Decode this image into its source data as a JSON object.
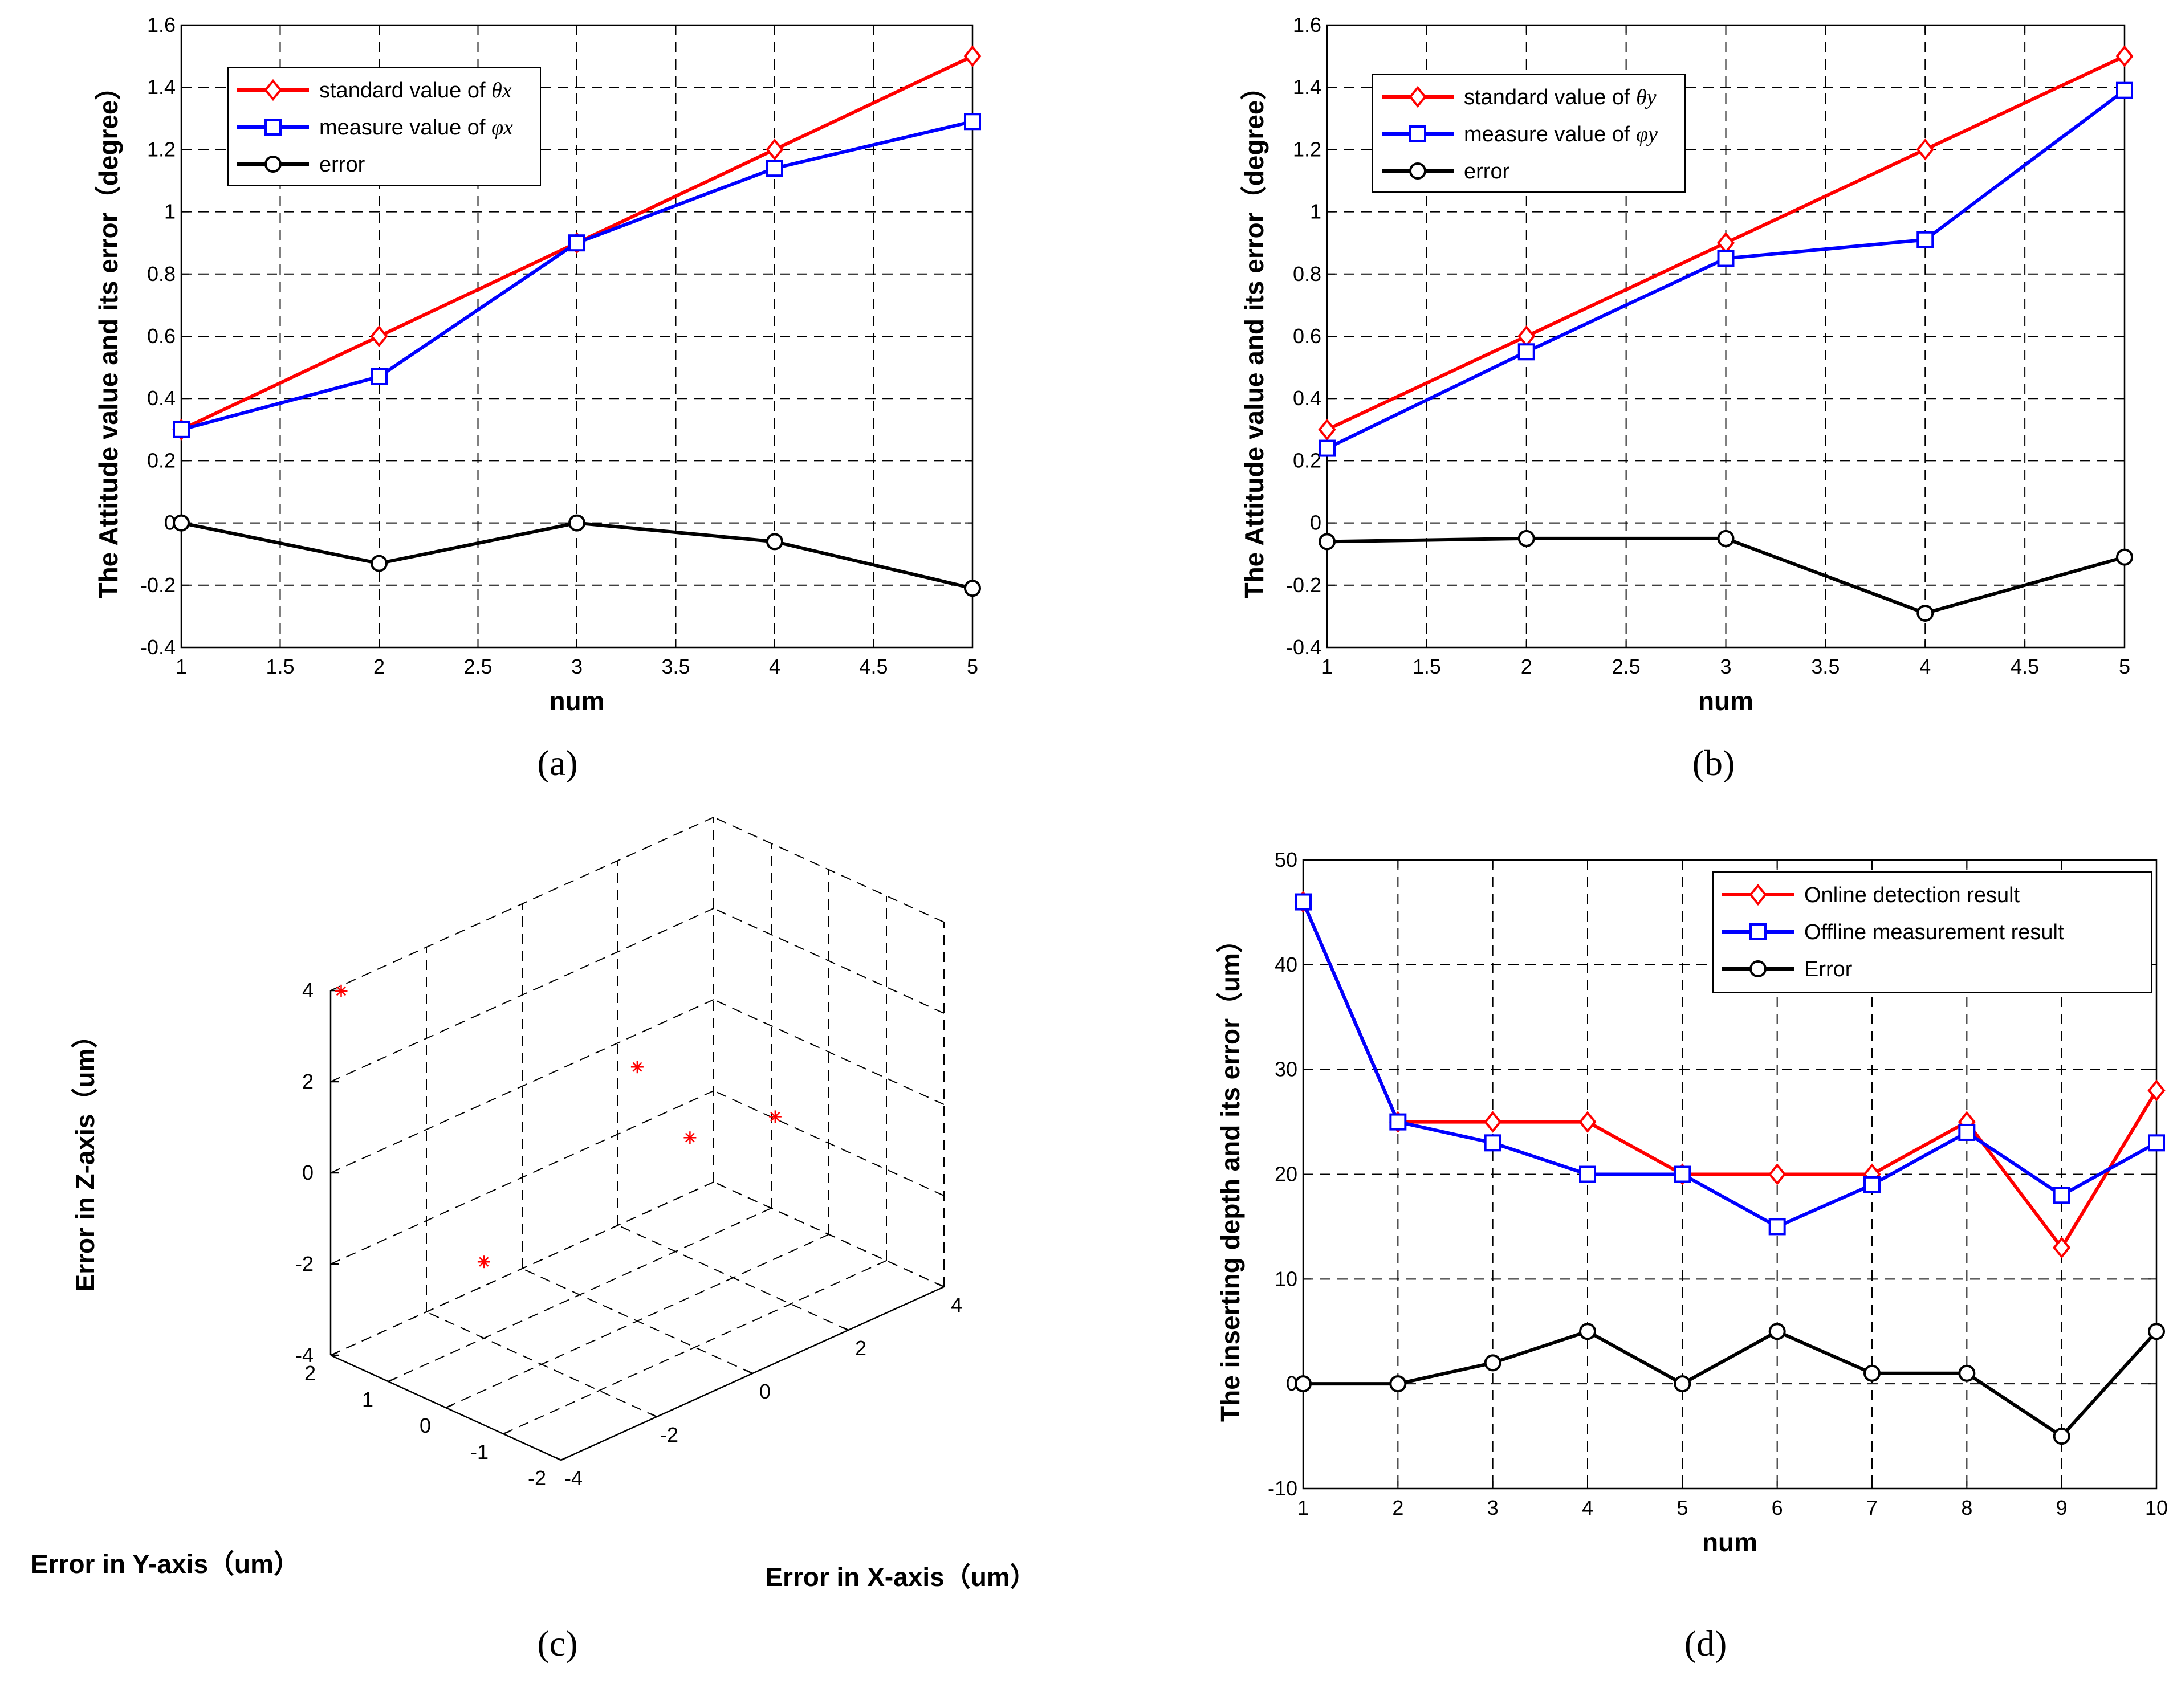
{
  "chart_data": [
    {
      "id": "a",
      "type": "line",
      "caption": "(a)",
      "xlabel": "num",
      "ylabel": "The Attitude value and its error（degree）",
      "x": [
        1,
        2,
        3,
        4,
        5
      ],
      "xlim": [
        1,
        5
      ],
      "ylim": [
        -0.4,
        1.6
      ],
      "xticks": [
        1,
        1.5,
        2,
        2.5,
        3,
        3.5,
        4,
        4.5,
        5
      ],
      "xtick_labels": [
        "1",
        "1.5",
        "2",
        "2.5",
        "3",
        "3.5",
        "4",
        "4.5",
        "5"
      ],
      "yticks": [
        -0.4,
        -0.2,
        0,
        0.2,
        0.4,
        0.6,
        0.8,
        1,
        1.2,
        1.4,
        1.6
      ],
      "ytick_labels": [
        "-0.4",
        "-0.2",
        "0",
        "0.2",
        "0.4",
        "0.6",
        "0.8",
        "1",
        "1.2",
        "1.4",
        "1.6"
      ],
      "grid": true,
      "legend_position": "top-left",
      "series": [
        {
          "name": "standard value of θx",
          "label_prefix": "standard value of ",
          "label_symbol": "θx",
          "color": "#ff0000",
          "marker": "diamond",
          "values": [
            0.3,
            0.6,
            0.9,
            1.2,
            1.5
          ]
        },
        {
          "name": "measure value of φx",
          "label_prefix": "measure value of ",
          "label_symbol": "φx",
          "color": "#0000ff",
          "marker": "square",
          "values": [
            0.3,
            0.47,
            0.9,
            1.14,
            1.29
          ]
        },
        {
          "name": "error",
          "label_prefix": "error",
          "label_symbol": "",
          "color": "#000000",
          "marker": "circle",
          "values": [
            0,
            -0.13,
            0,
            -0.06,
            -0.21
          ]
        }
      ]
    },
    {
      "id": "b",
      "type": "line",
      "caption": "(b)",
      "xlabel": "num",
      "ylabel": "The Attitude value and its error（degree）",
      "x": [
        1,
        2,
        3,
        4,
        5
      ],
      "xlim": [
        1,
        5
      ],
      "ylim": [
        -0.4,
        1.6
      ],
      "xticks": [
        1,
        1.5,
        2,
        2.5,
        3,
        3.5,
        4,
        4.5,
        5
      ],
      "xtick_labels": [
        "1",
        "1.5",
        "2",
        "2.5",
        "3",
        "3.5",
        "4",
        "4.5",
        "5"
      ],
      "yticks": [
        -0.4,
        -0.2,
        0,
        0.2,
        0.4,
        0.6,
        0.8,
        1,
        1.2,
        1.4,
        1.6
      ],
      "ytick_labels": [
        "-0.4",
        "-0.2",
        "0",
        "0.2",
        "0.4",
        "0.6",
        "0.8",
        "1",
        "1.2",
        "1.4",
        "1.6"
      ],
      "grid": true,
      "legend_position": "top-left",
      "series": [
        {
          "name": "standard value of θy",
          "label_prefix": "standard value of ",
          "label_symbol": "θy",
          "color": "#ff0000",
          "marker": "diamond",
          "values": [
            0.3,
            0.6,
            0.9,
            1.2,
            1.5
          ]
        },
        {
          "name": "measure value of φy",
          "label_prefix": "measure value of ",
          "label_symbol": "φy",
          "color": "#0000ff",
          "marker": "square",
          "values": [
            0.24,
            0.55,
            0.85,
            0.91,
            1.39
          ]
        },
        {
          "name": "error",
          "label_prefix": "error",
          "label_symbol": "",
          "color": "#000000",
          "marker": "circle",
          "values": [
            -0.06,
            -0.05,
            -0.05,
            -0.29,
            -0.11
          ]
        }
      ]
    },
    {
      "id": "c",
      "type": "scatter",
      "caption": "(c)",
      "xlabel": "Error in X-axis（um）",
      "ylabel": "Error in Y-axis（um）",
      "zlabel": "Error in Z-axis（um）",
      "xlim": [
        -4,
        4
      ],
      "ylim": [
        -2,
        2
      ],
      "zlim": [
        -4,
        4
      ],
      "xticks": [
        -4,
        -2,
        0,
        2,
        4
      ],
      "xtick_labels": [
        "-4",
        "-2",
        "0",
        "2",
        "4"
      ],
      "yticks": [
        -2,
        -1,
        0,
        1,
        2
      ],
      "ytick_labels": [
        "-2",
        "-1",
        "0",
        "1",
        "2"
      ],
      "zticks": [
        -4,
        -2,
        0,
        2,
        4
      ],
      "ztick_labels": [
        "-4",
        "-2",
        "0",
        "2",
        "4"
      ],
      "grid": true,
      "marker": "asterisk",
      "color": "#ff0000",
      "points": [
        {
          "x": -3.9,
          "y": 1.9,
          "z": 4.0
        },
        {
          "x": 0.6,
          "y": 0.5,
          "z": 1.0
        },
        {
          "x": 1.1,
          "y": 0.0,
          "z": -0.5
        },
        {
          "x": 3.0,
          "y": 0.1,
          "z": -1.0
        },
        {
          "x": -1.4,
          "y": 1.5,
          "z": -2.9
        }
      ]
    },
    {
      "id": "d",
      "type": "line",
      "caption": "(d)",
      "xlabel": "num",
      "ylabel": "The inserting depth and its error（um）",
      "x": [
        1,
        2,
        3,
        4,
        5,
        6,
        7,
        8,
        9,
        10
      ],
      "xlim": [
        1,
        10
      ],
      "ylim": [
        -10,
        50
      ],
      "xticks": [
        1,
        2,
        3,
        4,
        5,
        6,
        7,
        8,
        9,
        10
      ],
      "xtick_labels": [
        "1",
        "2",
        "3",
        "4",
        "5",
        "6",
        "7",
        "8",
        "9",
        "10"
      ],
      "yticks": [
        -10,
        0,
        10,
        20,
        30,
        40,
        50
      ],
      "ytick_labels": [
        "-10",
        "0",
        "10",
        "20",
        "30",
        "40",
        "50"
      ],
      "grid": true,
      "legend_position": "top-right",
      "series": [
        {
          "name": "Online detection result",
          "label_prefix": "Online detection result",
          "label_symbol": "",
          "color": "#ff0000",
          "marker": "diamond",
          "values": [
            46,
            25,
            25,
            25,
            20,
            20,
            20,
            25,
            13,
            28
          ]
        },
        {
          "name": "Offline measurement result",
          "label_prefix": "Offline measurement result",
          "label_symbol": "",
          "color": "#0000ff",
          "marker": "square",
          "values": [
            46,
            25,
            23,
            20,
            20,
            15,
            19,
            24,
            18,
            23
          ]
        },
        {
          "name": "Error",
          "label_prefix": "Error",
          "label_symbol": "",
          "color": "#000000",
          "marker": "circle",
          "values": [
            0,
            0,
            2,
            5,
            0,
            5,
            1,
            1,
            -5,
            5
          ]
        }
      ]
    }
  ]
}
